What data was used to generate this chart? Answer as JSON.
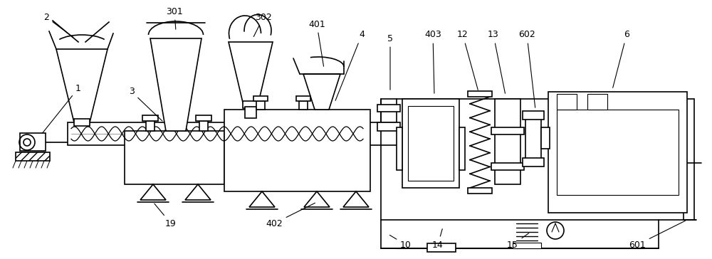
{
  "bg_color": "#ffffff",
  "line_color": "#000000",
  "figsize": [
    10.0,
    3.64
  ],
  "dpi": 100,
  "xlim": [
    0,
    1000
  ],
  "ylim": [
    0,
    364
  ]
}
